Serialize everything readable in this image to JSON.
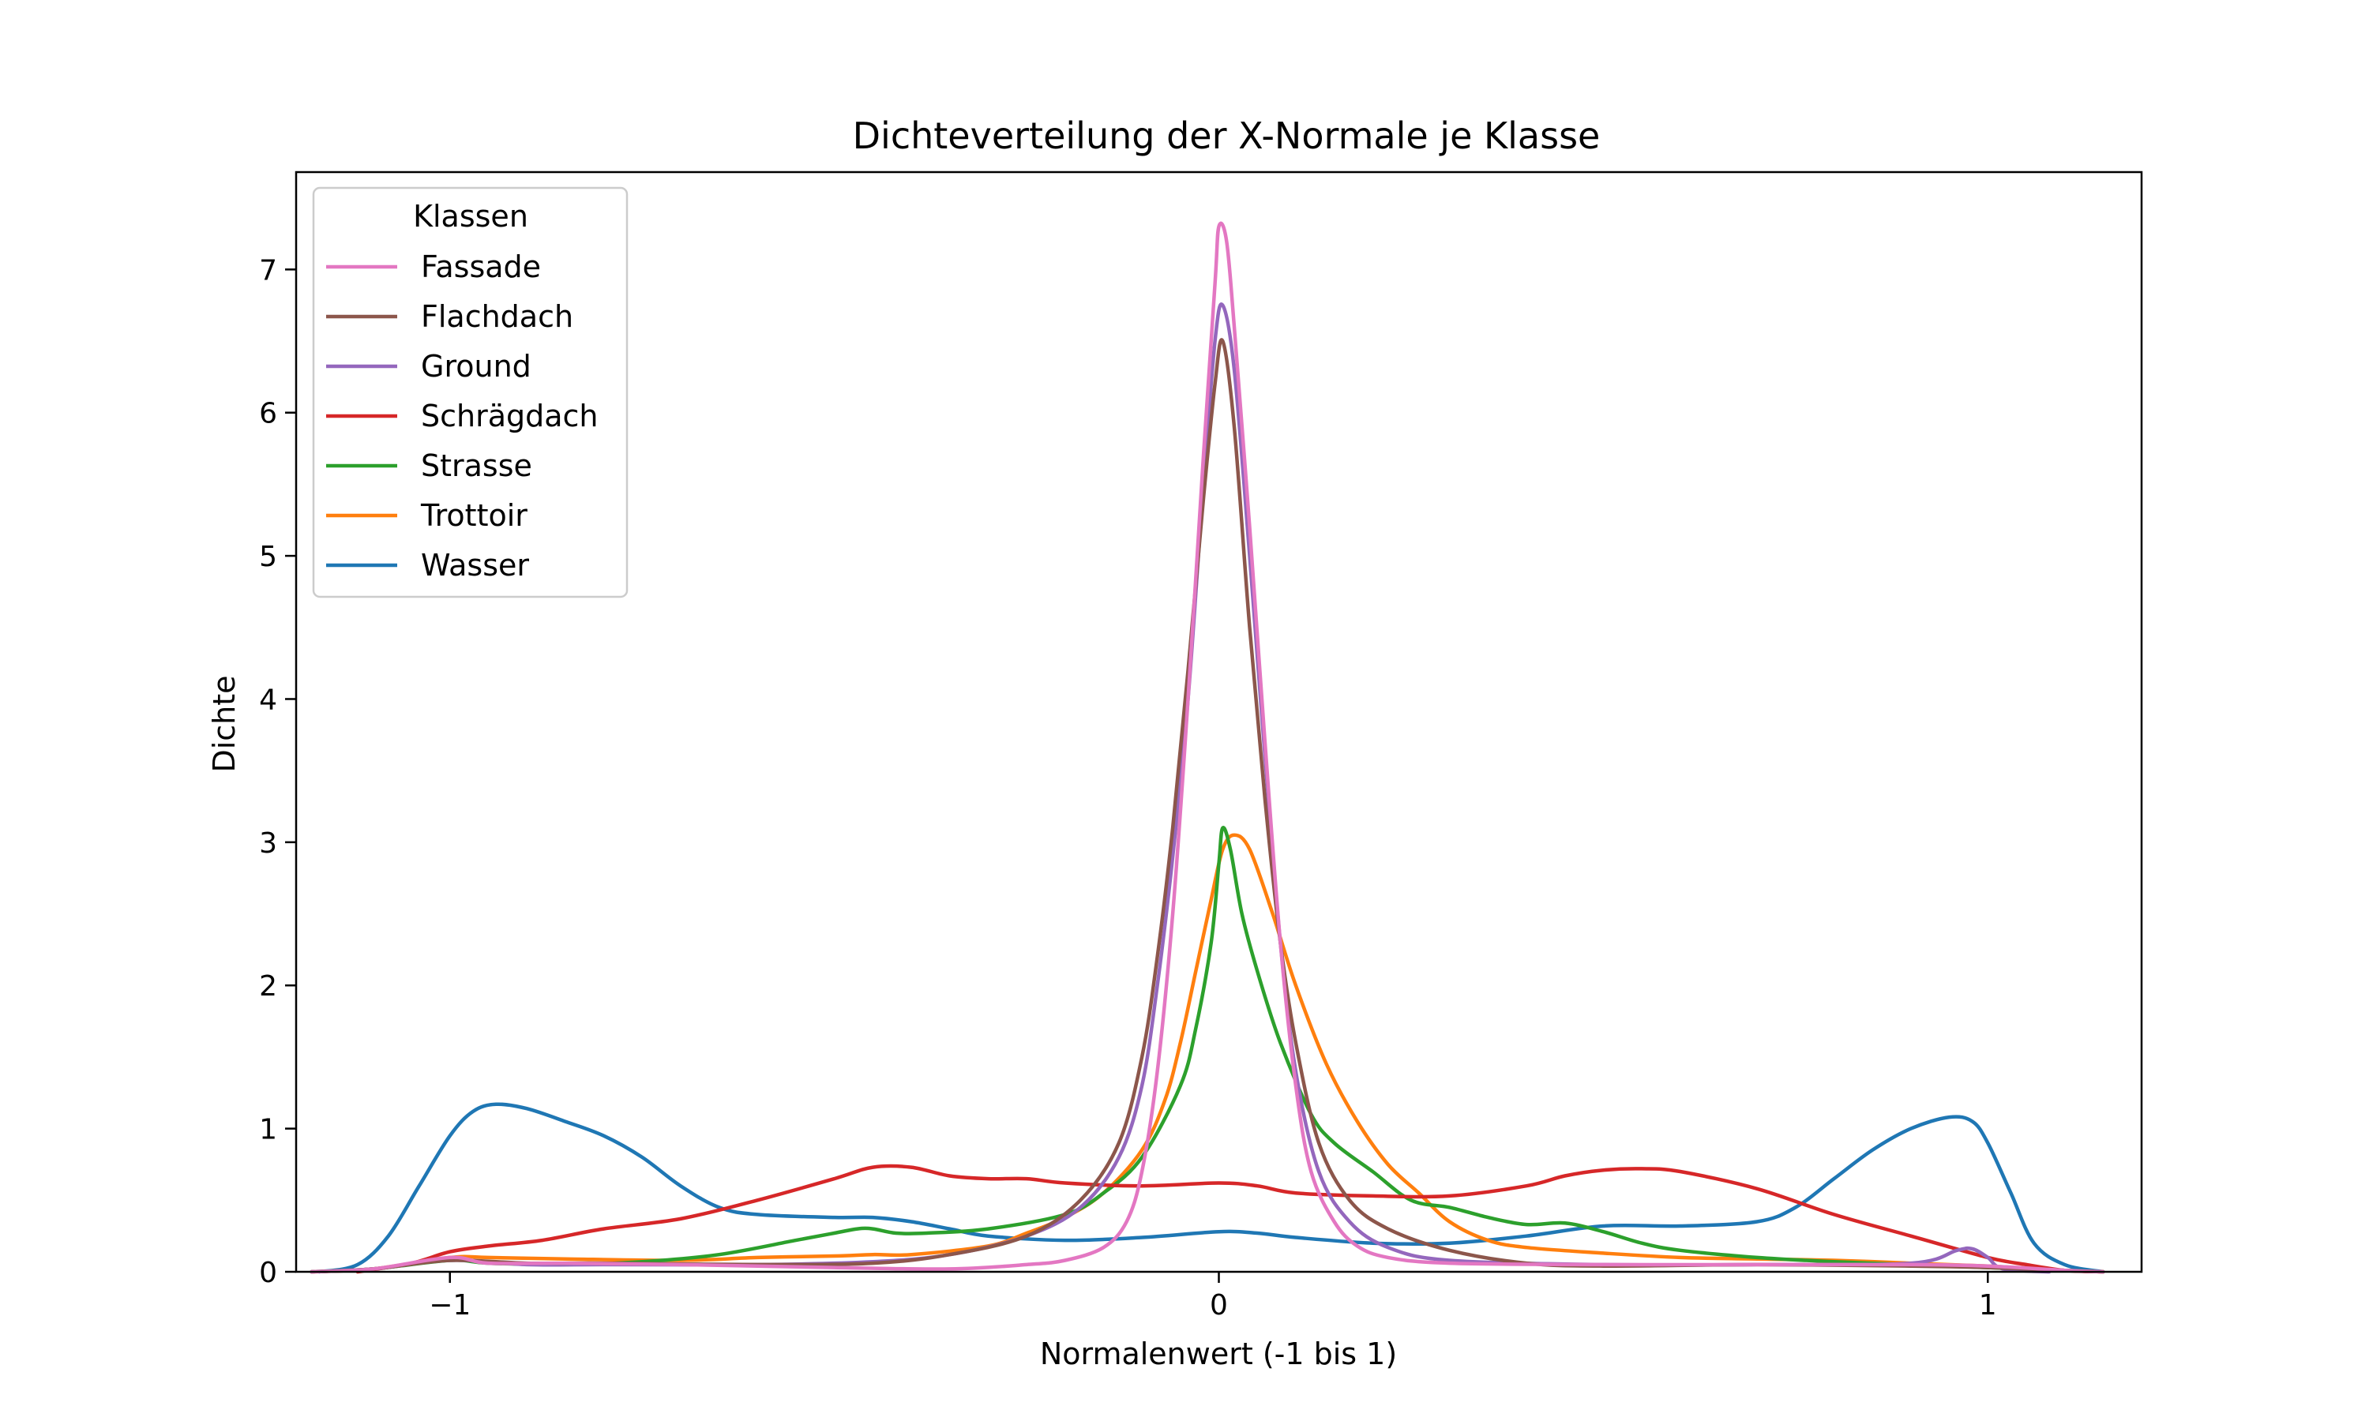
{
  "chart_data": {
    "type": "line",
    "title": "Dichteverteilung der X-Normale je Klasse",
    "xlabel": "Normalenwert (-1 bis 1)",
    "ylabel": "Dichte",
    "xlim": [
      -1.2,
      1.2
    ],
    "ylim": [
      0,
      7.68
    ],
    "xticks": [
      -1,
      0,
      1
    ],
    "xtick_labels": [
      "−1",
      "0",
      "1"
    ],
    "yticks": [
      0,
      1,
      2,
      3,
      4,
      5,
      6,
      7
    ],
    "ytick_labels": [
      "0",
      "1",
      "2",
      "3",
      "4",
      "5",
      "6",
      "7"
    ],
    "grid": false,
    "legend": {
      "title": "Klassen",
      "placement": "upper-left"
    },
    "series": [
      {
        "name": "Fassade",
        "color": "#e377c2",
        "points": [
          [
            -1.18,
            0
          ],
          [
            -1.1,
            0.02
          ],
          [
            -1.0,
            0.1
          ],
          [
            -0.95,
            0.06
          ],
          [
            -0.85,
            0.06
          ],
          [
            -0.7,
            0.05
          ],
          [
            -0.5,
            0.03
          ],
          [
            -0.35,
            0.02
          ],
          [
            -0.25,
            0.05
          ],
          [
            -0.2,
            0.08
          ],
          [
            -0.15,
            0.17
          ],
          [
            -0.12,
            0.35
          ],
          [
            -0.1,
            0.7
          ],
          [
            -0.08,
            1.4
          ],
          [
            -0.06,
            2.5
          ],
          [
            -0.04,
            4.0
          ],
          [
            -0.02,
            5.7
          ],
          [
            -0.005,
            6.9
          ],
          [
            0.0,
            7.3
          ],
          [
            0.01,
            7.2
          ],
          [
            0.02,
            6.6
          ],
          [
            0.04,
            5.2
          ],
          [
            0.06,
            3.7
          ],
          [
            0.08,
            2.3
          ],
          [
            0.1,
            1.3
          ],
          [
            0.12,
            0.7
          ],
          [
            0.15,
            0.35
          ],
          [
            0.18,
            0.18
          ],
          [
            0.22,
            0.1
          ],
          [
            0.3,
            0.06
          ],
          [
            0.5,
            0.05
          ],
          [
            0.7,
            0.05
          ],
          [
            0.9,
            0.05
          ],
          [
            1.0,
            0.04
          ],
          [
            1.1,
            0.01
          ],
          [
            1.15,
            0
          ]
        ]
      },
      {
        "name": "Flachdach",
        "color": "#8c564b",
        "points": [
          [
            -1.18,
            0
          ],
          [
            -1.1,
            0.02
          ],
          [
            -1.0,
            0.08
          ],
          [
            -0.9,
            0.06
          ],
          [
            -0.8,
            0.06
          ],
          [
            -0.6,
            0.05
          ],
          [
            -0.45,
            0.06
          ],
          [
            -0.35,
            0.12
          ],
          [
            -0.25,
            0.25
          ],
          [
            -0.18,
            0.5
          ],
          [
            -0.13,
            0.9
          ],
          [
            -0.1,
            1.5
          ],
          [
            -0.08,
            2.2
          ],
          [
            -0.06,
            3.1
          ],
          [
            -0.04,
            4.2
          ],
          [
            -0.02,
            5.4
          ],
          [
            -0.005,
            6.2
          ],
          [
            0.005,
            6.5
          ],
          [
            0.02,
            5.9
          ],
          [
            0.04,
            4.5
          ],
          [
            0.06,
            3.3
          ],
          [
            0.08,
            2.3
          ],
          [
            0.1,
            1.6
          ],
          [
            0.13,
            0.9
          ],
          [
            0.17,
            0.5
          ],
          [
            0.22,
            0.3
          ],
          [
            0.3,
            0.15
          ],
          [
            0.4,
            0.06
          ],
          [
            0.5,
            0.04
          ],
          [
            0.7,
            0.05
          ],
          [
            0.9,
            0.04
          ],
          [
            1.0,
            0.03
          ],
          [
            1.1,
            0.01
          ],
          [
            1.15,
            0
          ]
        ]
      },
      {
        "name": "Ground",
        "color": "#9467bd",
        "points": [
          [
            -1.18,
            0
          ],
          [
            -1.1,
            0.02
          ],
          [
            -1.0,
            0.08
          ],
          [
            -0.9,
            0.05
          ],
          [
            -0.8,
            0.05
          ],
          [
            -0.6,
            0.05
          ],
          [
            -0.45,
            0.07
          ],
          [
            -0.35,
            0.12
          ],
          [
            -0.25,
            0.25
          ],
          [
            -0.18,
            0.45
          ],
          [
            -0.13,
            0.8
          ],
          [
            -0.1,
            1.3
          ],
          [
            -0.08,
            2.0
          ],
          [
            -0.06,
            2.9
          ],
          [
            -0.04,
            4.0
          ],
          [
            -0.02,
            5.5
          ],
          [
            -0.005,
            6.5
          ],
          [
            0.005,
            6.75
          ],
          [
            0.02,
            6.3
          ],
          [
            0.04,
            5.0
          ],
          [
            0.06,
            3.6
          ],
          [
            0.08,
            2.3
          ],
          [
            0.1,
            1.4
          ],
          [
            0.13,
            0.7
          ],
          [
            0.17,
            0.35
          ],
          [
            0.22,
            0.17
          ],
          [
            0.3,
            0.08
          ],
          [
            0.5,
            0.05
          ],
          [
            0.7,
            0.05
          ],
          [
            0.9,
            0.06
          ],
          [
            0.96,
            0.15
          ],
          [
            0.98,
            0.16
          ],
          [
            1.0,
            0.1
          ],
          [
            1.02,
            0.02
          ],
          [
            1.08,
            0
          ]
        ]
      },
      {
        "name": "Schrägdach",
        "color": "#d62728",
        "points": [
          [
            -1.12,
            0
          ],
          [
            -1.05,
            0.06
          ],
          [
            -1.0,
            0.14
          ],
          [
            -0.95,
            0.18
          ],
          [
            -0.88,
            0.22
          ],
          [
            -0.8,
            0.3
          ],
          [
            -0.7,
            0.37
          ],
          [
            -0.6,
            0.5
          ],
          [
            -0.5,
            0.65
          ],
          [
            -0.45,
            0.73
          ],
          [
            -0.4,
            0.73
          ],
          [
            -0.35,
            0.67
          ],
          [
            -0.3,
            0.65
          ],
          [
            -0.25,
            0.65
          ],
          [
            -0.2,
            0.62
          ],
          [
            -0.1,
            0.6
          ],
          [
            0.0,
            0.62
          ],
          [
            0.05,
            0.6
          ],
          [
            0.1,
            0.55
          ],
          [
            0.2,
            0.53
          ],
          [
            0.3,
            0.53
          ],
          [
            0.4,
            0.6
          ],
          [
            0.45,
            0.67
          ],
          [
            0.5,
            0.71
          ],
          [
            0.55,
            0.72
          ],
          [
            0.6,
            0.7
          ],
          [
            0.7,
            0.58
          ],
          [
            0.8,
            0.4
          ],
          [
            0.9,
            0.25
          ],
          [
            1.0,
            0.1
          ],
          [
            1.05,
            0.05
          ],
          [
            1.1,
            0.01
          ],
          [
            1.15,
            0
          ]
        ]
      },
      {
        "name": "Strasse",
        "color": "#2ca02c",
        "points": [
          [
            -1.18,
            0
          ],
          [
            -1.1,
            0.02
          ],
          [
            -1.0,
            0.08
          ],
          [
            -0.95,
            0.06
          ],
          [
            -0.85,
            0.05
          ],
          [
            -0.75,
            0.07
          ],
          [
            -0.65,
            0.12
          ],
          [
            -0.55,
            0.22
          ],
          [
            -0.5,
            0.27
          ],
          [
            -0.47,
            0.3
          ],
          [
            -0.45,
            0.3
          ],
          [
            -0.42,
            0.27
          ],
          [
            -0.38,
            0.27
          ],
          [
            -0.3,
            0.3
          ],
          [
            -0.2,
            0.4
          ],
          [
            -0.15,
            0.55
          ],
          [
            -0.1,
            0.8
          ],
          [
            -0.05,
            1.3
          ],
          [
            -0.03,
            1.7
          ],
          [
            -0.01,
            2.3
          ],
          [
            0.0,
            2.85
          ],
          [
            0.005,
            3.1
          ],
          [
            0.015,
            2.95
          ],
          [
            0.03,
            2.5
          ],
          [
            0.05,
            2.1
          ],
          [
            0.08,
            1.6
          ],
          [
            0.12,
            1.1
          ],
          [
            0.15,
            0.9
          ],
          [
            0.2,
            0.7
          ],
          [
            0.25,
            0.5
          ],
          [
            0.3,
            0.45
          ],
          [
            0.35,
            0.38
          ],
          [
            0.4,
            0.33
          ],
          [
            0.45,
            0.34
          ],
          [
            0.5,
            0.28
          ],
          [
            0.55,
            0.2
          ],
          [
            0.6,
            0.15
          ],
          [
            0.7,
            0.1
          ],
          [
            0.8,
            0.07
          ],
          [
            0.9,
            0.05
          ],
          [
            1.0,
            0.03
          ],
          [
            1.1,
            0.01
          ],
          [
            1.15,
            0
          ]
        ]
      },
      {
        "name": "Trottoir",
        "color": "#ff7f0e",
        "points": [
          [
            -1.18,
            0
          ],
          [
            -1.1,
            0.02
          ],
          [
            -1.0,
            0.1
          ],
          [
            -0.95,
            0.1
          ],
          [
            -0.85,
            0.09
          ],
          [
            -0.7,
            0.08
          ],
          [
            -0.6,
            0.1
          ],
          [
            -0.5,
            0.11
          ],
          [
            -0.45,
            0.12
          ],
          [
            -0.4,
            0.12
          ],
          [
            -0.3,
            0.18
          ],
          [
            -0.25,
            0.27
          ],
          [
            -0.2,
            0.38
          ],
          [
            -0.15,
            0.55
          ],
          [
            -0.1,
            0.85
          ],
          [
            -0.07,
            1.2
          ],
          [
            -0.05,
            1.6
          ],
          [
            -0.03,
            2.1
          ],
          [
            -0.01,
            2.6
          ],
          [
            0.005,
            2.95
          ],
          [
            0.02,
            3.05
          ],
          [
            0.04,
            2.95
          ],
          [
            0.07,
            2.5
          ],
          [
            0.1,
            2.0
          ],
          [
            0.14,
            1.45
          ],
          [
            0.18,
            1.05
          ],
          [
            0.22,
            0.75
          ],
          [
            0.26,
            0.55
          ],
          [
            0.3,
            0.35
          ],
          [
            0.35,
            0.22
          ],
          [
            0.4,
            0.17
          ],
          [
            0.5,
            0.13
          ],
          [
            0.6,
            0.1
          ],
          [
            0.7,
            0.09
          ],
          [
            0.8,
            0.08
          ],
          [
            0.9,
            0.06
          ],
          [
            1.0,
            0.04
          ],
          [
            1.1,
            0.01
          ],
          [
            1.15,
            0
          ]
        ]
      },
      {
        "name": "Wasser",
        "color": "#1f77b4",
        "points": [
          [
            -1.17,
            0
          ],
          [
            -1.12,
            0.05
          ],
          [
            -1.08,
            0.25
          ],
          [
            -1.04,
            0.6
          ],
          [
            -1.0,
            0.95
          ],
          [
            -0.97,
            1.12
          ],
          [
            -0.94,
            1.17
          ],
          [
            -0.9,
            1.14
          ],
          [
            -0.85,
            1.05
          ],
          [
            -0.8,
            0.95
          ],
          [
            -0.75,
            0.8
          ],
          [
            -0.7,
            0.6
          ],
          [
            -0.65,
            0.45
          ],
          [
            -0.6,
            0.4
          ],
          [
            -0.5,
            0.38
          ],
          [
            -0.45,
            0.38
          ],
          [
            -0.4,
            0.35
          ],
          [
            -0.35,
            0.3
          ],
          [
            -0.3,
            0.25
          ],
          [
            -0.2,
            0.22
          ],
          [
            -0.1,
            0.24
          ],
          [
            0.0,
            0.28
          ],
          [
            0.05,
            0.27
          ],
          [
            0.1,
            0.24
          ],
          [
            0.2,
            0.2
          ],
          [
            0.3,
            0.2
          ],
          [
            0.4,
            0.25
          ],
          [
            0.5,
            0.32
          ],
          [
            0.6,
            0.32
          ],
          [
            0.7,
            0.35
          ],
          [
            0.75,
            0.45
          ],
          [
            0.8,
            0.65
          ],
          [
            0.85,
            0.85
          ],
          [
            0.9,
            1.0
          ],
          [
            0.95,
            1.08
          ],
          [
            0.98,
            1.05
          ],
          [
            1.0,
            0.9
          ],
          [
            1.03,
            0.55
          ],
          [
            1.06,
            0.2
          ],
          [
            1.1,
            0.05
          ],
          [
            1.15,
            0
          ]
        ]
      }
    ]
  }
}
